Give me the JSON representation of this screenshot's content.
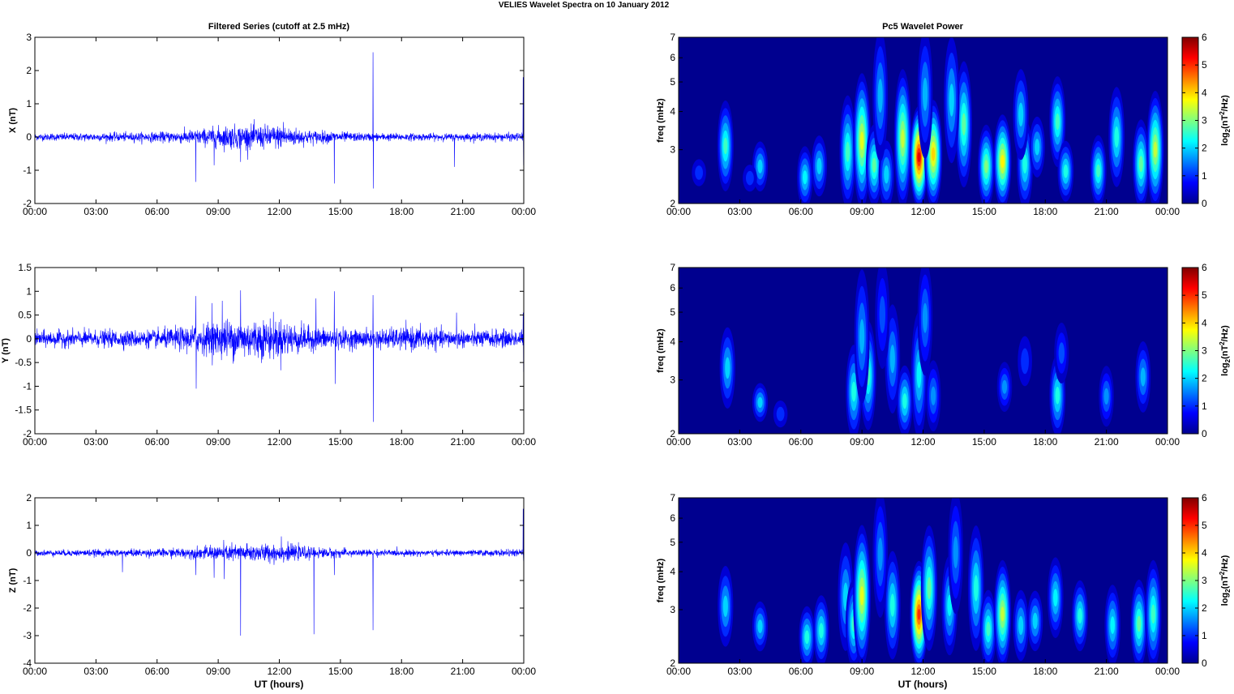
{
  "figure_title": "VELIES Wavelet Spectra on 10 January   2012",
  "left_title": "Filtered Series (cutoff at 2.5 mHz)",
  "right_title": "Pc5 Wavelet Power",
  "x_axis_label": "UT (hours)",
  "time_ticks": [
    "00:00",
    "03:00",
    "06:00",
    "09:00",
    "12:00",
    "15:00",
    "18:00",
    "21:00",
    "00:00"
  ],
  "colors": {
    "trace": "#0000ff",
    "spectrum_background": "#00008f"
  },
  "chart_data": [
    {
      "type": "line",
      "ylabel": "X (nT)",
      "xlim": [
        0,
        24
      ],
      "ylim": [
        -2,
        3
      ],
      "yticks": [
        {
          "v": -2,
          "label": "-2"
        },
        {
          "v": -1,
          "label": "-1"
        },
        {
          "v": 0,
          "label": "0"
        },
        {
          "v": 1,
          "label": "1"
        },
        {
          "v": 2,
          "label": "2"
        },
        {
          "v": 3,
          "label": "3"
        }
      ],
      "series": [
        {
          "noise": [
            [
              0,
              0.05
            ],
            [
              6,
              0.07
            ],
            [
              8,
              0.11
            ],
            [
              9.5,
              0.17
            ],
            [
              12,
              0.17
            ],
            [
              13.5,
              0.1
            ],
            [
              16,
              0.06
            ],
            [
              20,
              0.05
            ],
            [
              24,
              0.06
            ]
          ],
          "spikes": [
            [
              7.9,
              -1.35
            ],
            [
              8.8,
              -0.85
            ],
            [
              10.1,
              -0.75
            ],
            [
              12.2,
              0.45
            ],
            [
              14.7,
              -1.4
            ],
            [
              16.6,
              2.55
            ],
            [
              16.62,
              -1.55
            ],
            [
              20.6,
              -0.9
            ],
            [
              23.97,
              1.8
            ],
            [
              23.99,
              -0.85
            ]
          ]
        }
      ]
    },
    {
      "type": "line",
      "ylabel": "Y (nT)",
      "xlim": [
        0,
        24
      ],
      "ylim": [
        -2,
        1.5
      ],
      "yticks": [
        {
          "v": -2,
          "label": "-2"
        },
        {
          "v": -1.5,
          "label": "-1.5"
        },
        {
          "v": -1,
          "label": "-1"
        },
        {
          "v": -0.5,
          "label": "-0.5"
        },
        {
          "v": 0,
          "label": "0"
        },
        {
          "v": 0.5,
          "label": "0.5"
        },
        {
          "v": 1,
          "label": "1"
        },
        {
          "v": 1.5,
          "label": "1.5"
        }
      ],
      "series": [
        {
          "noise": [
            [
              0,
              0.08
            ],
            [
              6,
              0.09
            ],
            [
              8,
              0.14
            ],
            [
              9.5,
              0.2
            ],
            [
              12,
              0.2
            ],
            [
              13.5,
              0.12
            ],
            [
              16,
              0.09
            ],
            [
              19,
              0.12
            ],
            [
              20,
              0.09
            ],
            [
              24,
              0.09
            ]
          ],
          "spikes": [
            [
              7.9,
              0.9
            ],
            [
              7.92,
              -1.05
            ],
            [
              8.7,
              0.75
            ],
            [
              9.2,
              0.8
            ],
            [
              10.1,
              1.02
            ],
            [
              13.8,
              0.85
            ],
            [
              14.7,
              1.0
            ],
            [
              14.75,
              -0.95
            ],
            [
              16.6,
              0.92
            ],
            [
              16.62,
              -1.75
            ],
            [
              20.7,
              0.55
            ],
            [
              23.97,
              0.55
            ],
            [
              23.99,
              -0.7
            ]
          ]
        }
      ]
    },
    {
      "type": "line",
      "ylabel": "Z (nT)",
      "xlim": [
        0,
        24
      ],
      "ylim": [
        -4,
        2
      ],
      "yticks": [
        {
          "v": -4,
          "label": "-4"
        },
        {
          "v": -3,
          "label": "-3"
        },
        {
          "v": -2,
          "label": "-2"
        },
        {
          "v": -1,
          "label": "-1"
        },
        {
          "v": 0,
          "label": "0"
        },
        {
          "v": 1,
          "label": "1"
        },
        {
          "v": 2,
          "label": "2"
        }
      ],
      "series": [
        {
          "noise": [
            [
              0,
              0.05
            ],
            [
              6,
              0.07
            ],
            [
              8,
              0.1
            ],
            [
              9.5,
              0.15
            ],
            [
              12,
              0.16
            ],
            [
              13.5,
              0.1
            ],
            [
              16,
              0.06
            ],
            [
              20,
              0.05
            ],
            [
              24,
              0.06
            ]
          ],
          "spikes": [
            [
              4.3,
              -0.7
            ],
            [
              7.9,
              -0.8
            ],
            [
              8.8,
              -0.9
            ],
            [
              9.3,
              -0.95
            ],
            [
              10.1,
              -3.0
            ],
            [
              12.1,
              0.6
            ],
            [
              13.7,
              -2.95
            ],
            [
              14.7,
              -0.8
            ],
            [
              16.6,
              -2.8
            ],
            [
              23.97,
              1.6
            ],
            [
              23.99,
              -0.3
            ]
          ]
        }
      ]
    },
    {
      "type": "heatmap",
      "ylabel": "freq (mHz)",
      "xlim": [
        0,
        24
      ],
      "ylim": [
        2,
        7
      ],
      "yscale": "log",
      "yticks": [
        2,
        3,
        4,
        5,
        6,
        7
      ],
      "colorbar": {
        "label": "log2(nT2/Hz)",
        "range": [
          0,
          6
        ],
        "ticks": [
          0,
          1,
          2,
          3,
          4,
          5,
          6
        ]
      },
      "blobs": [
        [
          2.3,
          3.0,
          0.8,
          2.6
        ],
        [
          4.0,
          2.6,
          0.4,
          2.0
        ],
        [
          6.2,
          2.3,
          0.6,
          2.2
        ],
        [
          6.9,
          2.6,
          0.5,
          2.0
        ],
        [
          8.3,
          2.8,
          1.1,
          2.6
        ],
        [
          9.0,
          3.0,
          1.4,
          3.6
        ],
        [
          9.6,
          2.6,
          0.7,
          2.8
        ],
        [
          10.2,
          2.4,
          0.6,
          2.0
        ],
        [
          11.0,
          3.0,
          1.5,
          3.4
        ],
        [
          11.8,
          2.5,
          1.2,
          5.4
        ],
        [
          12.5,
          2.8,
          1.0,
          4.0
        ],
        [
          14.0,
          3.5,
          1.2,
          2.8
        ],
        [
          15.1,
          2.5,
          0.8,
          3.0
        ],
        [
          15.9,
          2.6,
          0.9,
          3.8
        ],
        [
          17.0,
          2.6,
          0.8,
          2.4
        ],
        [
          17.6,
          3.0,
          0.5,
          2.0
        ],
        [
          18.6,
          3.6,
          0.8,
          2.6
        ],
        [
          19.0,
          2.5,
          0.5,
          2.4
        ],
        [
          20.6,
          2.5,
          0.6,
          2.6
        ],
        [
          21.5,
          3.2,
          0.9,
          2.4
        ],
        [
          22.7,
          2.6,
          0.8,
          2.8
        ],
        [
          23.4,
          2.8,
          1.2,
          3.4
        ],
        [
          13.4,
          4.2,
          1.2,
          2.0
        ],
        [
          16.8,
          3.8,
          0.8,
          2.0
        ],
        [
          9.9,
          4.5,
          1.4,
          1.8
        ],
        [
          12.1,
          4.6,
          1.4,
          1.8
        ],
        [
          1.0,
          2.5,
          0.2,
          1.0
        ],
        [
          3.5,
          2.4,
          0.2,
          1.0
        ]
      ]
    },
    {
      "type": "heatmap",
      "ylabel": "freq (mHz)",
      "xlim": [
        0,
        24
      ],
      "ylim": [
        2,
        7
      ],
      "yscale": "log",
      "yticks": [
        2,
        3,
        4,
        5,
        6,
        7
      ],
      "colorbar": {
        "label": "log2(nT2/Hz)",
        "range": [
          0,
          6
        ],
        "ticks": [
          0,
          1,
          2,
          3,
          4,
          5,
          6
        ]
      },
      "blobs": [
        [
          2.4,
          3.2,
          0.7,
          2.0
        ],
        [
          4.0,
          2.5,
          0.3,
          2.0
        ],
        [
          8.6,
          2.6,
          0.9,
          2.4
        ],
        [
          9.3,
          3.0,
          1.0,
          2.6
        ],
        [
          9.0,
          4.0,
          1.3,
          1.8
        ],
        [
          10.5,
          3.4,
          1.0,
          1.8
        ],
        [
          11.1,
          2.5,
          0.6,
          2.4
        ],
        [
          11.8,
          3.0,
          1.2,
          2.2
        ],
        [
          12.5,
          2.6,
          0.6,
          1.6
        ],
        [
          12.1,
          4.8,
          1.2,
          1.6
        ],
        [
          16.0,
          2.8,
          0.4,
          1.6
        ],
        [
          18.6,
          2.6,
          0.7,
          2.4
        ],
        [
          21.0,
          2.6,
          0.5,
          1.6
        ],
        [
          22.8,
          3.0,
          0.6,
          1.8
        ],
        [
          18.8,
          3.6,
          0.5,
          1.2
        ],
        [
          17.0,
          3.4,
          0.4,
          1.0
        ],
        [
          5.0,
          2.3,
          0.2,
          1.0
        ],
        [
          10.0,
          5.2,
          1.3,
          1.2
        ]
      ]
    },
    {
      "type": "heatmap",
      "ylabel": "freq (mHz)",
      "xlim": [
        0,
        24
      ],
      "ylim": [
        2,
        7
      ],
      "yscale": "log",
      "yticks": [
        2,
        3,
        4,
        5,
        6,
        7
      ],
      "colorbar": {
        "label": "log2(nT2/Hz)",
        "range": [
          0,
          6
        ],
        "ticks": [
          0,
          1,
          2,
          3,
          4,
          5,
          6
        ]
      },
      "blobs": [
        [
          2.3,
          3.0,
          0.7,
          2.0
        ],
        [
          4.0,
          2.6,
          0.4,
          2.0
        ],
        [
          6.3,
          2.3,
          0.6,
          2.4
        ],
        [
          7.0,
          2.5,
          0.6,
          2.4
        ],
        [
          8.2,
          3.2,
          1.0,
          2.0
        ],
        [
          8.6,
          2.6,
          0.8,
          2.6
        ],
        [
          9.0,
          3.2,
          1.4,
          3.6
        ],
        [
          10.5,
          3.0,
          1.0,
          2.4
        ],
        [
          11.8,
          2.6,
          1.2,
          5.0
        ],
        [
          12.3,
          3.4,
          1.2,
          2.8
        ],
        [
          13.3,
          3.0,
          0.9,
          2.2
        ],
        [
          14.6,
          3.4,
          1.2,
          2.4
        ],
        [
          15.2,
          2.5,
          0.7,
          2.6
        ],
        [
          15.9,
          2.8,
          1.0,
          3.4
        ],
        [
          16.8,
          2.6,
          0.6,
          2.0
        ],
        [
          17.5,
          2.7,
          0.5,
          2.0
        ],
        [
          18.5,
          3.2,
          0.7,
          2.2
        ],
        [
          19.7,
          2.8,
          0.6,
          2.4
        ],
        [
          21.3,
          2.6,
          0.7,
          2.2
        ],
        [
          22.6,
          2.6,
          0.8,
          2.8
        ],
        [
          23.3,
          2.8,
          1.0,
          2.6
        ],
        [
          13.6,
          4.5,
          1.2,
          1.6
        ],
        [
          9.9,
          4.5,
          1.3,
          1.6
        ]
      ]
    }
  ]
}
